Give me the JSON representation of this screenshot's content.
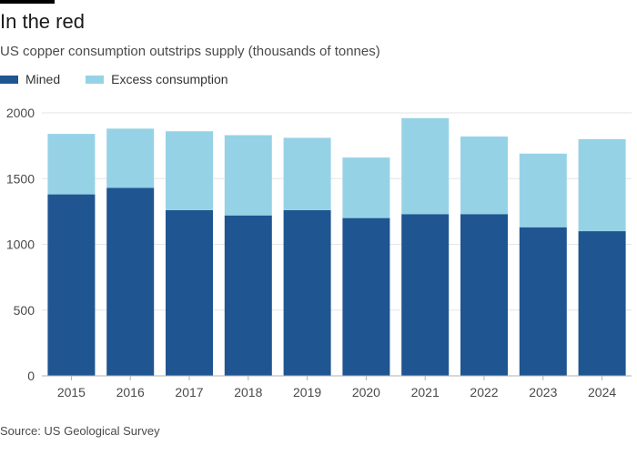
{
  "header": {
    "title": "In the red",
    "subtitle": "US copper consumption outstrips supply (thousands of tonnes)"
  },
  "legend": [
    {
      "label": "Mined",
      "color": "#1f5591"
    },
    {
      "label": "Excess consumption",
      "color": "#96d2e6"
    }
  ],
  "footer": {
    "source": "Source: US Geological Survey"
  },
  "chart_data": {
    "type": "bar",
    "stacked": true,
    "categories": [
      "2015",
      "2016",
      "2017",
      "2018",
      "2019",
      "2020",
      "2021",
      "2022",
      "2023",
      "2024"
    ],
    "series": [
      {
        "name": "Mined",
        "color": "#1f5591",
        "values": [
          1380,
          1430,
          1260,
          1220,
          1260,
          1200,
          1230,
          1230,
          1130,
          1100
        ]
      },
      {
        "name": "Excess consumption",
        "color": "#96d2e6",
        "values": [
          460,
          450,
          600,
          610,
          550,
          460,
          730,
          590,
          560,
          700
        ]
      }
    ],
    "title": "In the red",
    "xlabel": "",
    "ylabel": "thousands of tonnes",
    "ylim": [
      0,
      2000
    ],
    "yticks": [
      0,
      500,
      1000,
      1500,
      2000
    ],
    "grid": true
  }
}
